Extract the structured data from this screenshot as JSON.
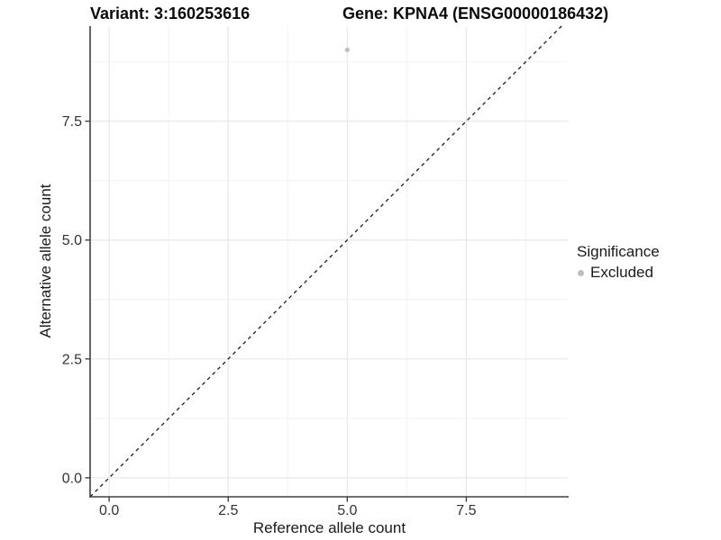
{
  "header": {
    "variant_title": "Variant: 3:160253616",
    "gene_title": "Gene: KPNA4 (ENSG00000186432)"
  },
  "legend": {
    "title": "Significance",
    "items": [
      {
        "label": "Excluded",
        "color": "#bdbdbd"
      }
    ]
  },
  "chart_data": {
    "type": "scatter",
    "title": "Variant: 3:160253616 / Gene: KPNA4 (ENSG00000186432)",
    "xlabel": "Reference allele count",
    "ylabel": "Alternative allele count",
    "xlim": [
      -0.4,
      9.65
    ],
    "ylim": [
      -0.4,
      9.5
    ],
    "x_ticks": {
      "values": [
        0,
        2.5,
        5,
        7.5
      ],
      "labels": [
        "0.0",
        "2.5",
        "5.0",
        "7.5"
      ]
    },
    "y_ticks": {
      "values": [
        0,
        2.5,
        5,
        7.5
      ],
      "labels": [
        "0.0",
        "2.5",
        "5.0",
        "7.5"
      ]
    },
    "x_minor": [
      1.25,
      3.75,
      6.25,
      8.75
    ],
    "y_minor": [
      1.25,
      3.75,
      6.25,
      8.75
    ],
    "grid": true,
    "legend_position": "right",
    "series": [
      {
        "name": "Excluded",
        "color": "#bdbdbd",
        "points": [
          {
            "x": 5,
            "y": 9
          }
        ]
      }
    ],
    "reference_line": {
      "kind": "identity",
      "slope": 1,
      "intercept": 0,
      "style": "dashed",
      "color": "#1a1a1a"
    }
  },
  "style": {
    "grid_major_color": "#e8e8e8",
    "grid_minor_color": "#f3f3f3",
    "axis_color": "#404040",
    "tick_label_color": "#333333",
    "point_color": "#bdbdbd"
  }
}
